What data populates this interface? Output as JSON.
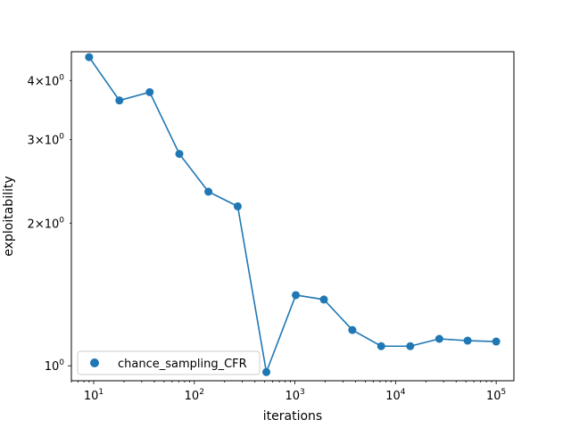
{
  "chart_data": {
    "type": "line",
    "xscale": "log",
    "yscale": "log",
    "xlabel": "iterations",
    "ylabel": "exploitability",
    "xlim": [
      6,
      150000
    ],
    "ylim": [
      0.93,
      4.6
    ],
    "grid": false,
    "legend_position": "lower-left",
    "x_ticks": [
      {
        "value": 10,
        "base": "10",
        "exp": "1"
      },
      {
        "value": 100,
        "base": "10",
        "exp": "2"
      },
      {
        "value": 1000,
        "base": "10",
        "exp": "3"
      },
      {
        "value": 10000,
        "base": "10",
        "exp": "4"
      },
      {
        "value": 100000,
        "base": "10",
        "exp": "5"
      }
    ],
    "y_ticks": [
      {
        "value": 1,
        "mant": "",
        "base": "10",
        "exp": "0"
      },
      {
        "value": 2,
        "mant": "2×",
        "base": "10",
        "exp": "0"
      },
      {
        "value": 3,
        "mant": "3×",
        "base": "10",
        "exp": "0"
      },
      {
        "value": 4,
        "mant": "4×",
        "base": "10",
        "exp": "0"
      }
    ],
    "series": [
      {
        "name": "chance_sampling_CFR",
        "color": "#1f77b4",
        "x": [
          9,
          18,
          36,
          71,
          138,
          270,
          520,
          1020,
          1940,
          3720,
          7200,
          14000,
          27200,
          52000,
          100000
        ],
        "y": [
          4.48,
          3.63,
          3.78,
          2.8,
          2.33,
          2.17,
          0.97,
          1.41,
          1.38,
          1.19,
          1.1,
          1.1,
          1.14,
          1.13,
          1.125
        ]
      }
    ]
  }
}
